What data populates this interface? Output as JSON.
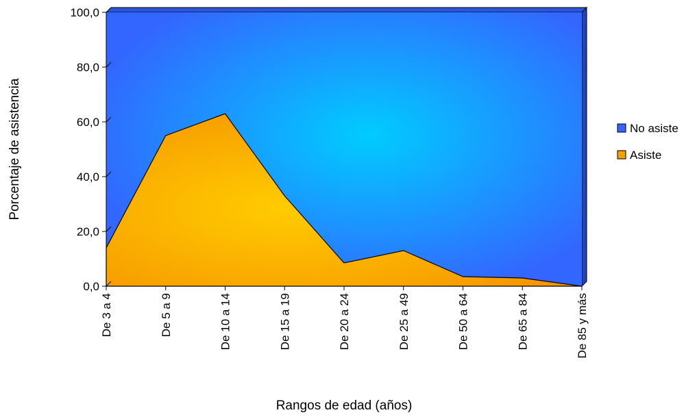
{
  "chart_data": {
    "type": "area",
    "stacked": true,
    "categories": [
      "De 3 a 4",
      "De 5 a 9",
      "De 10 a 14",
      "De 15 a 19",
      "De 20 a 24",
      "De 25 a 49",
      "De 50 a 64",
      "De 65 a 84",
      "De 85 y más"
    ],
    "series": [
      {
        "name": "Asiste",
        "values": [
          14.0,
          55.0,
          63.0,
          33.0,
          8.5,
          13.0,
          3.5,
          3.0,
          0.0
        ],
        "color": "#F5A000"
      },
      {
        "name": "No asiste",
        "values": [
          86.0,
          45.0,
          37.0,
          67.0,
          91.5,
          87.0,
          96.5,
          97.0,
          100.0
        ],
        "color": "#3366FF"
      }
    ],
    "xlabel": "Rangos de edad (años)",
    "ylabel": "Porcentaje de asistencia",
    "ylim": [
      0,
      100
    ],
    "yticks": [
      "0,0",
      "20,0",
      "40,0",
      "60,0",
      "80,0",
      "100,0"
    ],
    "legend": [
      "No asiste",
      "Asiste"
    ],
    "legend_position": "right",
    "grid": false
  }
}
